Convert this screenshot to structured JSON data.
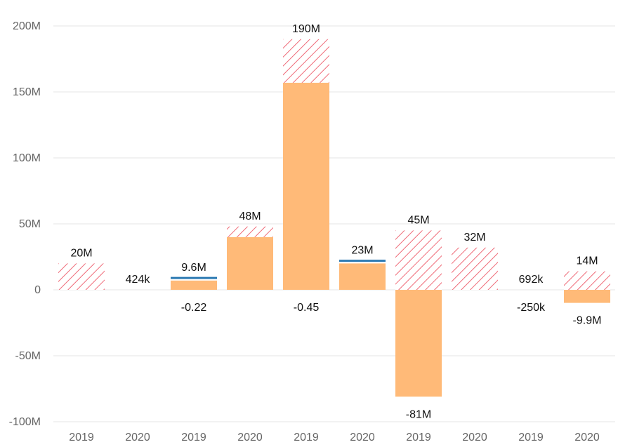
{
  "chart_data": {
    "type": "bar",
    "categories": [
      "2019",
      "2020",
      "2019",
      "2020",
      "2019",
      "2020",
      "2019",
      "2020",
      "2019",
      "2020"
    ],
    "ylim": [
      -100,
      200
    ],
    "yunit": "M",
    "yticks": [
      "-100M",
      "-50M",
      "0",
      "50M",
      "100M",
      "150M",
      "200M"
    ],
    "grid": true,
    "bars": [
      {
        "solid": 0,
        "hatched_top": 20,
        "line": null,
        "label_top": "20M",
        "label_bottom": null
      },
      {
        "solid": 0,
        "hatched_top": null,
        "line": null,
        "label_top": "424k",
        "label_bottom": null
      },
      {
        "solid": 7,
        "hatched_top": null,
        "line": 9,
        "label_top": "9.6M",
        "label_bottom": "-0.22"
      },
      {
        "solid": 40,
        "hatched_top": 48,
        "line": null,
        "label_top": "48M",
        "label_bottom": null
      },
      {
        "solid": 157,
        "hatched_top": 190,
        "line": null,
        "label_top": "190M",
        "label_bottom": "-0.45"
      },
      {
        "solid": 20,
        "hatched_top": null,
        "line": 22,
        "label_top": "23M",
        "label_bottom": null
      },
      {
        "solid": -81,
        "hatched_top": 45,
        "line": null,
        "label_top": "45M",
        "label_bottom": "-81M"
      },
      {
        "solid": 0,
        "hatched_top": 32,
        "line": null,
        "label_top": "32M",
        "label_bottom": null
      },
      {
        "solid": 0,
        "hatched_top": null,
        "line": null,
        "label_top": "692k",
        "label_bottom": "-250k"
      },
      {
        "solid": -9.9,
        "hatched_top": 14,
        "line": null,
        "label_top": "14M",
        "label_bottom": "-9.9M"
      }
    ]
  },
  "colors": {
    "solid": "#ffba78",
    "hatch": "#ef6b78",
    "line": "#2b79b2",
    "grid": "#e5e5e5"
  }
}
